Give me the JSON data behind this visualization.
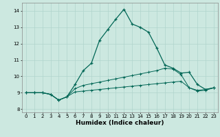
{
  "xlabel": "Humidex (Indice chaleur)",
  "bg_color": "#cce8e0",
  "grid_color": "#b0d4cc",
  "line_color": "#006655",
  "xlim": [
    -0.5,
    23.5
  ],
  "ylim": [
    7.8,
    14.5
  ],
  "xticks": [
    0,
    1,
    2,
    3,
    4,
    5,
    6,
    7,
    8,
    9,
    10,
    11,
    12,
    13,
    14,
    15,
    16,
    17,
    18,
    19,
    20,
    21,
    22,
    23
  ],
  "yticks": [
    8,
    9,
    10,
    11,
    12,
    13,
    14
  ],
  "line1_x": [
    0,
    1,
    2,
    3,
    4,
    5,
    6,
    7,
    8,
    9,
    10,
    11,
    12,
    13,
    14,
    15,
    16,
    17,
    18,
    19,
    20,
    21,
    22,
    23
  ],
  "line1_y": [
    9.0,
    9.0,
    9.0,
    8.9,
    8.55,
    8.75,
    9.5,
    10.35,
    10.8,
    12.2,
    12.85,
    13.5,
    14.1,
    13.2,
    13.0,
    12.7,
    11.75,
    10.7,
    10.5,
    10.2,
    10.25,
    9.5,
    9.2,
    9.3
  ],
  "line2_x": [
    0,
    1,
    2,
    3,
    4,
    5,
    6,
    7,
    8,
    9,
    10,
    11,
    12,
    13,
    14,
    15,
    16,
    17,
    18,
    19,
    20,
    21,
    22,
    23
  ],
  "line2_y": [
    9.0,
    9.0,
    9.0,
    8.9,
    8.55,
    8.75,
    9.25,
    9.45,
    9.55,
    9.65,
    9.75,
    9.85,
    9.95,
    10.05,
    10.15,
    10.25,
    10.35,
    10.5,
    10.45,
    10.1,
    9.3,
    9.15,
    9.2,
    9.3
  ],
  "line3_x": [
    0,
    1,
    2,
    3,
    4,
    5,
    6,
    7,
    8,
    9,
    10,
    11,
    12,
    13,
    14,
    15,
    16,
    17,
    18,
    19,
    20,
    21,
    22,
    23
  ],
  "line3_y": [
    9.0,
    9.0,
    9.0,
    8.9,
    8.55,
    8.75,
    9.05,
    9.1,
    9.15,
    9.2,
    9.25,
    9.3,
    9.35,
    9.4,
    9.45,
    9.5,
    9.55,
    9.6,
    9.65,
    9.7,
    9.3,
    9.1,
    9.15,
    9.3
  ]
}
